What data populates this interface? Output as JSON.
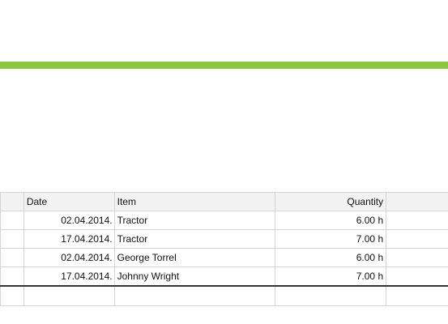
{
  "table": {
    "columns": {
      "date": "Date",
      "item": "Item",
      "quantity": "Quantity"
    },
    "rows": [
      {
        "date": "02.04.2014.",
        "item": "Tractor",
        "quantity": "6.00 h"
      },
      {
        "date": "17.04.2014.",
        "item": "Tractor",
        "quantity": "7.00 h"
      },
      {
        "date": "02.04.2014.",
        "item": "George Torrel",
        "quantity": "6.00 h"
      },
      {
        "date": "17.04.2014.",
        "item": "Johnny Wright",
        "quantity": "7.00 h"
      }
    ]
  },
  "colors": {
    "accent": "#8dc63f",
    "header_bg": "#f2f2f2",
    "grid": "#d4d4d4"
  }
}
